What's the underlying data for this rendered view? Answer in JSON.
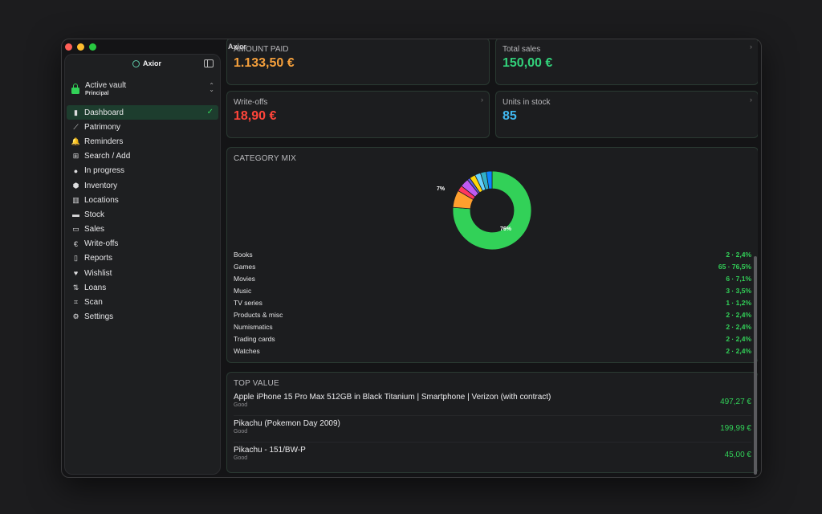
{
  "window": {
    "title": "Axior"
  },
  "sidebar": {
    "app_name": "Axior",
    "vault": {
      "title": "Active vault",
      "subtitle": "Principal"
    },
    "items": [
      {
        "label": "Dashboard",
        "icon": "bar-chart-icon",
        "glyph": "▮",
        "active": true
      },
      {
        "label": "Patrimony",
        "icon": "line-chart-icon",
        "glyph": "⟋"
      },
      {
        "label": "Reminders",
        "icon": "bell-icon",
        "glyph": "🔔"
      },
      {
        "label": "Search / Add",
        "icon": "grid-icon",
        "glyph": "⊞"
      },
      {
        "label": "In progress",
        "icon": "ellipsis-circle-icon",
        "glyph": "●"
      },
      {
        "label": "Inventory",
        "icon": "cube-icon",
        "glyph": "⬢"
      },
      {
        "label": "Locations",
        "icon": "map-icon",
        "glyph": "▥"
      },
      {
        "label": "Stock",
        "icon": "archive-icon",
        "glyph": "▬"
      },
      {
        "label": "Sales",
        "icon": "banknote-icon",
        "glyph": "▭"
      },
      {
        "label": "Write-offs",
        "icon": "euro-circle-icon",
        "glyph": "€"
      },
      {
        "label": "Reports",
        "icon": "document-icon",
        "glyph": "▯"
      },
      {
        "label": "Wishlist",
        "icon": "heart-icon",
        "glyph": "♥"
      },
      {
        "label": "Loans",
        "icon": "loan-arrows-icon",
        "glyph": "⇅"
      },
      {
        "label": "Scan",
        "icon": "scan-icon",
        "glyph": "⌗"
      },
      {
        "label": "Settings",
        "icon": "gear-icon",
        "glyph": "⚙"
      }
    ]
  },
  "kpis": [
    {
      "label": "AMOUNT PAID",
      "value": "1.133,50 €",
      "color": "#f5a03c"
    },
    {
      "label": "Total sales",
      "value": "150,00 €",
      "color": "#32d17a"
    },
    {
      "label": "Write-offs",
      "value": "18,90 €",
      "color": "#ff453a"
    },
    {
      "label": "Units in stock",
      "value": "85",
      "color": "#40b8f0"
    }
  ],
  "category_mix": {
    "title": "CATEGORY MIX",
    "labels": {
      "small": "7%",
      "large": "76%"
    },
    "rows": [
      {
        "name": "Books",
        "value": "2 · 2,4%"
      },
      {
        "name": "Games",
        "value": "65 · 76,5%"
      },
      {
        "name": "Movies",
        "value": "6 · 7,1%"
      },
      {
        "name": "Music",
        "value": "3 · 3,5%"
      },
      {
        "name": "TV series",
        "value": "1 · 1,2%"
      },
      {
        "name": "Products & misc",
        "value": "2 · 2,4%"
      },
      {
        "name": "Numismatics",
        "value": "2 · 2,4%"
      },
      {
        "name": "Trading cards",
        "value": "2 · 2,4%"
      },
      {
        "name": "Watches",
        "value": "2 · 2,4%"
      }
    ],
    "slices": [
      {
        "pct": 76.5,
        "color": "#32d158"
      },
      {
        "pct": 7.1,
        "color": "#ff9f2e"
      },
      {
        "pct": 2.4,
        "color": "#ff375f"
      },
      {
        "pct": 3.5,
        "color": "#bf5af2"
      },
      {
        "pct": 1.2,
        "color": "#5e5ce6"
      },
      {
        "pct": 2.4,
        "color": "#ffd60a"
      },
      {
        "pct": 2.4,
        "color": "#64d2ff"
      },
      {
        "pct": 2.4,
        "color": "#30b0c7"
      },
      {
        "pct": 2.4,
        "color": "#0a84ff"
      }
    ]
  },
  "top_value": {
    "title": "TOP VALUE",
    "items": [
      {
        "name": "Apple iPhone 15 Pro Max 512GB in Black Titanium | Smartphone | Verizon (with contract)",
        "condition": "Good",
        "value": "497,27 €"
      },
      {
        "name": "Pikachu (Pokemon Day 2009)",
        "condition": "Good",
        "value": "199,99 €"
      },
      {
        "name": "Pikachu - 151/BW-P",
        "condition": "Good",
        "value": "45,00 €"
      }
    ]
  }
}
